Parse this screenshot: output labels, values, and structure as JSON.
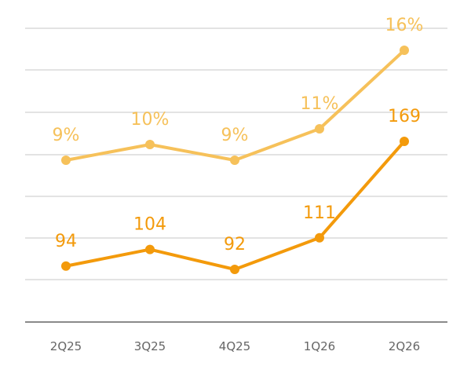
{
  "chart_data": {
    "type": "line",
    "categories": [
      "2Q25",
      "3Q25",
      "4Q25",
      "1Q26",
      "2Q26"
    ],
    "series": [
      {
        "values": [
          9,
          10,
          9,
          11,
          16
        ],
        "labels": [
          "9%",
          "10%",
          "9%",
          "11%",
          "16%"
        ],
        "color": "#f6c15a"
      },
      {
        "values": [
          94,
          104,
          92,
          111,
          169
        ],
        "labels": [
          "94",
          "104",
          "92",
          "111",
          "169"
        ],
        "color": "#f39a0b"
      }
    ],
    "title": "",
    "xlabel": "",
    "ylabel": "",
    "grid": true,
    "legend": "none"
  }
}
